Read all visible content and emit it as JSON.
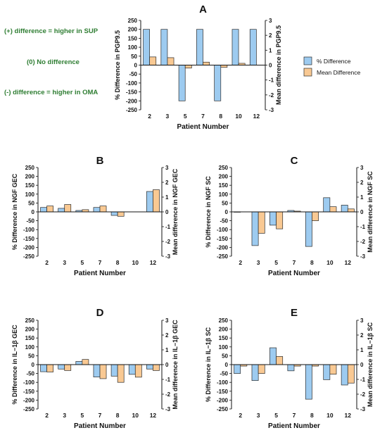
{
  "notes": {
    "positive": "(+) difference = higher in SUP",
    "zero": "(0) No difference",
    "negative": "(-) difference = higher in OMA",
    "color": "#2e7d32"
  },
  "colors": {
    "percent": "#9dcbf0",
    "mean": "#f9c993",
    "stroke": "#2b2b2b"
  },
  "chart_data": [
    {
      "type": "bar",
      "panel": "A",
      "categories": [
        "2",
        "3",
        "5",
        "7",
        "8",
        "10",
        "12"
      ],
      "xlabel": "Patient Number",
      "ylabel": "% Difference in PGP9.5",
      "y2label": "Mean difference in PGP9.5",
      "ylim": [
        -250,
        250
      ],
      "yticks": [
        "250",
        "200",
        "150",
        "100",
        "50",
        "0",
        "-50",
        "-100",
        "-150",
        "-200",
        "-250"
      ],
      "y2lim": [
        -3,
        3
      ],
      "y2ticks": [
        "3",
        "2",
        "1",
        "0",
        "-1",
        "-2",
        "-3"
      ],
      "legend": {
        "position": "right",
        "entries": [
          "% Difference",
          "Mean Difference"
        ]
      },
      "series": [
        {
          "name": "% Difference",
          "values": [
            200,
            200,
            -200,
            200,
            -200,
            200,
            200
          ]
        },
        {
          "name": "Mean Difference",
          "values": [
            0.55,
            0.5,
            -0.2,
            0.2,
            -0.15,
            0.12,
            0
          ]
        }
      ]
    },
    {
      "type": "bar",
      "panel": "B",
      "categories": [
        "2",
        "3",
        "5",
        "7",
        "8",
        "10",
        "12"
      ],
      "xlabel": "Patient Number",
      "ylabel": "% Difference in NGF GEC",
      "y2label": "Mean difference in NGF GEC",
      "ylim": [
        -250,
        250
      ],
      "yticks": [
        "250",
        "200",
        "150",
        "100",
        "50",
        "0",
        "-50",
        "-100",
        "-150",
        "-200",
        "-250"
      ],
      "y2lim": [
        -3,
        3
      ],
      "y2ticks": [
        "3",
        "2",
        "1",
        "0",
        "-1",
        "-2",
        "-3"
      ],
      "series": [
        {
          "name": "% Difference",
          "values": [
            25,
            20,
            8,
            25,
            -20,
            0,
            115
          ]
        },
        {
          "name": "Mean Difference",
          "values": [
            0.4,
            0.5,
            0.15,
            0.4,
            -0.3,
            0,
            1.5
          ]
        }
      ]
    },
    {
      "type": "bar",
      "panel": "C",
      "categories": [
        "2",
        "3",
        "5",
        "7",
        "8",
        "10",
        "12"
      ],
      "xlabel": "Patient Number",
      "ylabel": "% Difference in NGF SC",
      "y2label": "Mean difference in NGF SC",
      "ylim": [
        -250,
        250
      ],
      "yticks": [
        "250",
        "200",
        "150",
        "100",
        "50",
        "0",
        "-50",
        "-100",
        "-150",
        "-200",
        "-250"
      ],
      "y2lim": [
        -3,
        3
      ],
      "y2ticks": [
        "3",
        "2",
        "1",
        "0",
        "-1",
        "-2",
        "-3"
      ],
      "series": [
        {
          "name": "% Difference",
          "values": [
            -2,
            -190,
            -75,
            8,
            -195,
            80,
            38
          ]
        },
        {
          "name": "Mean Difference",
          "values": [
            0,
            -1.45,
            -1.15,
            0.05,
            -0.6,
            0.35,
            0.2
          ]
        }
      ]
    },
    {
      "type": "bar",
      "panel": "D",
      "categories": [
        "2",
        "3",
        "5",
        "7",
        "8",
        "10",
        "12"
      ],
      "xlabel": "Patient Number",
      "ylabel": "% Difference in IL−1β GEC",
      "y2label": "Mean difference in IL−1β GEC",
      "ylim": [
        -250,
        250
      ],
      "yticks": [
        "250",
        "200",
        "150",
        "100",
        "50",
        "0",
        "-50",
        "-100",
        "-150",
        "-200",
        "-250"
      ],
      "y2lim": [
        -3,
        3
      ],
      "y2ticks": [
        "3",
        "2",
        "1",
        "0",
        "-1",
        "-2",
        "-3"
      ],
      "series": [
        {
          "name": "% Difference",
          "values": [
            -40,
            -25,
            18,
            -70,
            -65,
            -55,
            -25
          ]
        },
        {
          "name": "Mean Difference",
          "values": [
            -0.5,
            -0.4,
            0.35,
            -0.95,
            -1.2,
            -0.85,
            -0.4
          ]
        }
      ]
    },
    {
      "type": "bar",
      "panel": "E",
      "categories": [
        "2",
        "3",
        "5",
        "7",
        "8",
        "10",
        "12"
      ],
      "xlabel": "Patient Number",
      "ylabel": "% Difference in IL−1β SC",
      "y2label": "Mean difference in IL−1β SC",
      "ylim": [
        -250,
        250
      ],
      "yticks": [
        "250",
        "200",
        "150",
        "100",
        "50",
        "0",
        "-50",
        "-100",
        "-150",
        "-200",
        "-250"
      ],
      "y2lim": [
        -3,
        3
      ],
      "y2ticks": [
        "3",
        "2",
        "1",
        "0",
        "-1",
        "-2",
        "-3"
      ],
      "series": [
        {
          "name": "% Difference",
          "values": [
            -50,
            -90,
            95,
            -35,
            -195,
            -85,
            -115
          ]
        },
        {
          "name": "Mean Difference",
          "values": [
            -0.1,
            -0.6,
            0.55,
            -0.1,
            -0.1,
            -0.65,
            -1.25
          ]
        }
      ]
    }
  ]
}
